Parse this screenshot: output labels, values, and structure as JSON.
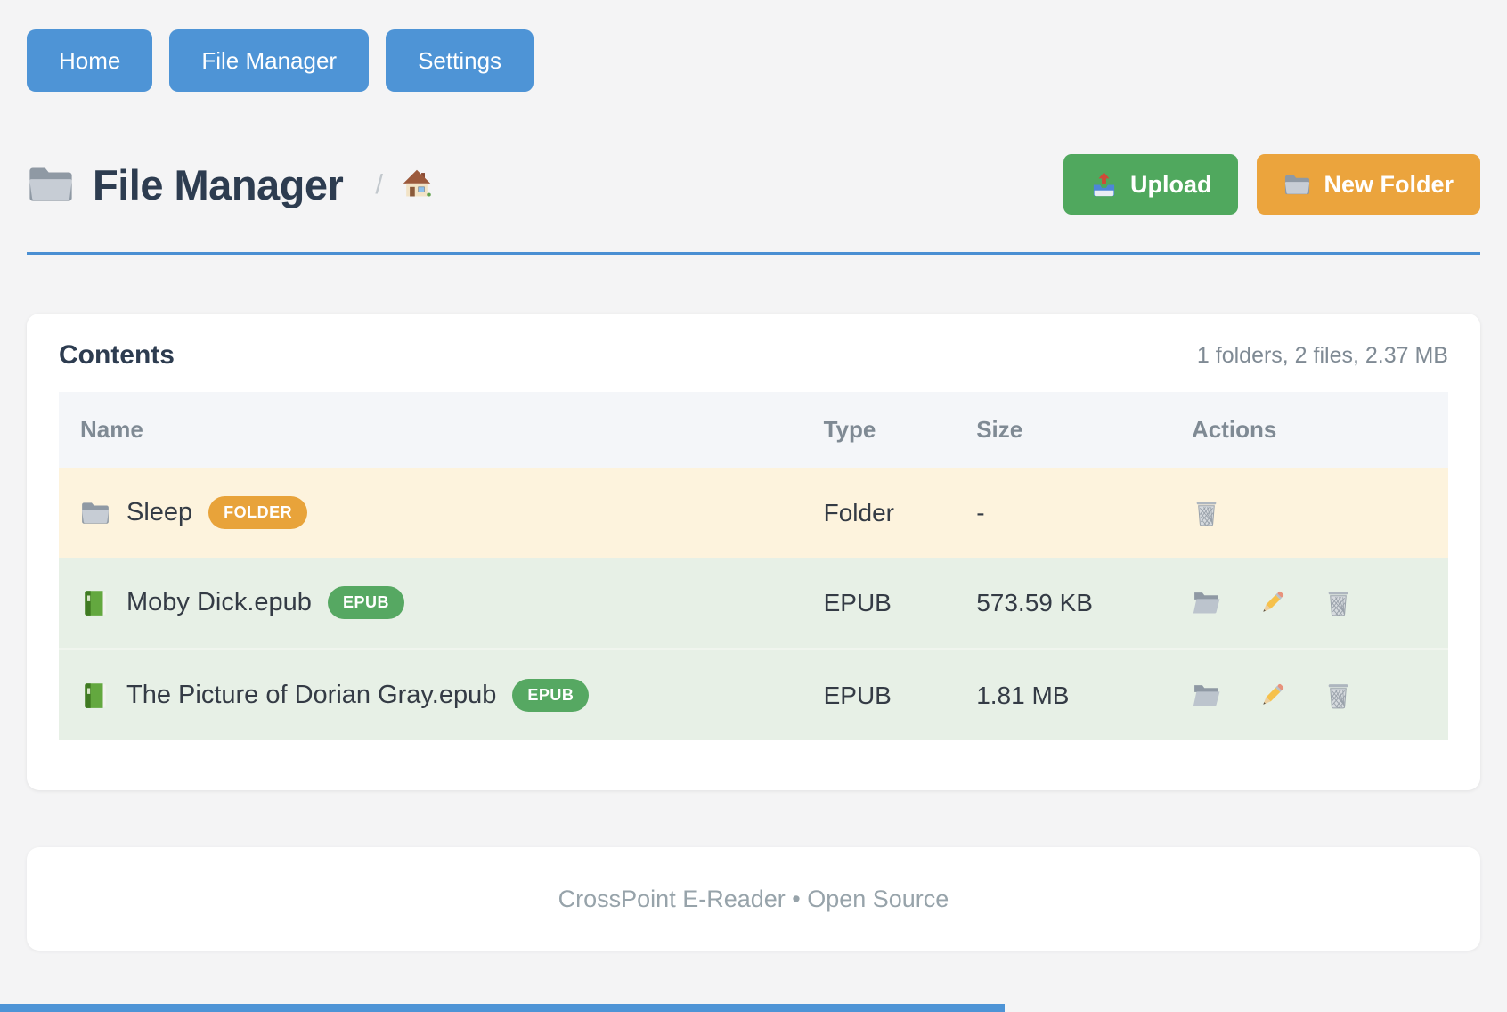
{
  "nav": {
    "items": [
      {
        "label": "Home"
      },
      {
        "label": "File Manager"
      },
      {
        "label": "Settings"
      }
    ]
  },
  "header": {
    "title_icon": "folder-icon",
    "title": "File Manager",
    "breadcrumb": {
      "separator": "/",
      "home_icon": "home-icon"
    },
    "upload_button": {
      "icon": "upload-tray-icon",
      "label": "Upload"
    },
    "new_folder_button": {
      "icon": "folder-icon",
      "label": "New Folder"
    }
  },
  "contents": {
    "title": "Contents",
    "summary": "1 folders, 2 files, 2.37 MB",
    "table": {
      "columns": [
        "Name",
        "Type",
        "Size",
        "Actions"
      ],
      "rows": [
        {
          "icon": "folder-icon",
          "name": "Sleep",
          "badge": "FOLDER",
          "kind": "folder",
          "type": "Folder",
          "size": "-",
          "actions": [
            "delete"
          ]
        },
        {
          "icon": "book-icon",
          "name": "Moby Dick.epub",
          "badge": "EPUB",
          "kind": "file",
          "type": "EPUB",
          "size": "573.59 KB",
          "actions": [
            "move",
            "rename",
            "delete"
          ]
        },
        {
          "icon": "book-icon",
          "name": "The Picture of Dorian Gray.epub",
          "badge": "EPUB",
          "kind": "file",
          "type": "EPUB",
          "size": "1.81 MB",
          "actions": [
            "move",
            "rename",
            "delete"
          ]
        }
      ]
    }
  },
  "footer": {
    "text": "CrossPoint E-Reader • Open Source"
  },
  "colors": {
    "nav_blue": "#4e94d6",
    "upload_green": "#50a85e",
    "new_folder_orange": "#eba43d",
    "divider_blue": "#4a8fd3",
    "heading": "#2d3c50",
    "muted_text": "#7f8a94",
    "footer_text": "#97a3aa",
    "table_header_bg": "#f4f6f9",
    "row_folder_bg": "#fdf3dd",
    "row_file_bg": "#e7f0e6",
    "badge_folder": "#e8a33a",
    "badge_epub": "#56a862",
    "page_bg": "#f4f4f5"
  }
}
